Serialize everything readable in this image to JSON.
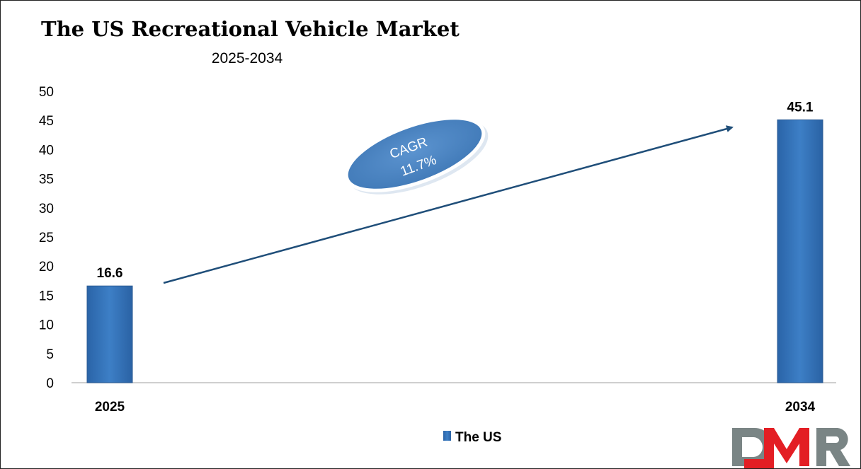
{
  "chart_data": {
    "type": "bar",
    "title": "The US Recreational Vehicle Market",
    "subtitle": "2025-2034",
    "categories": [
      "2025",
      "2034"
    ],
    "series": [
      {
        "name": "The US",
        "values": [
          16.6,
          45.1
        ],
        "color": "#3a78c0"
      }
    ],
    "data_labels": [
      "16.6",
      "45.1"
    ],
    "yticks": [
      "0",
      "5",
      "10",
      "15",
      "20",
      "25",
      "30",
      "35",
      "40",
      "45",
      "50"
    ],
    "ylim": [
      0,
      50
    ],
    "xlabel": "",
    "ylabel": "",
    "grid": false,
    "legend": {
      "position": "bottom",
      "entries": [
        "The US"
      ]
    },
    "annotation": {
      "line1": "CAGR",
      "line2": "11.7%"
    }
  },
  "logo": {
    "text": "DMR",
    "colors": [
      "#7a8585",
      "#e31e24"
    ]
  }
}
